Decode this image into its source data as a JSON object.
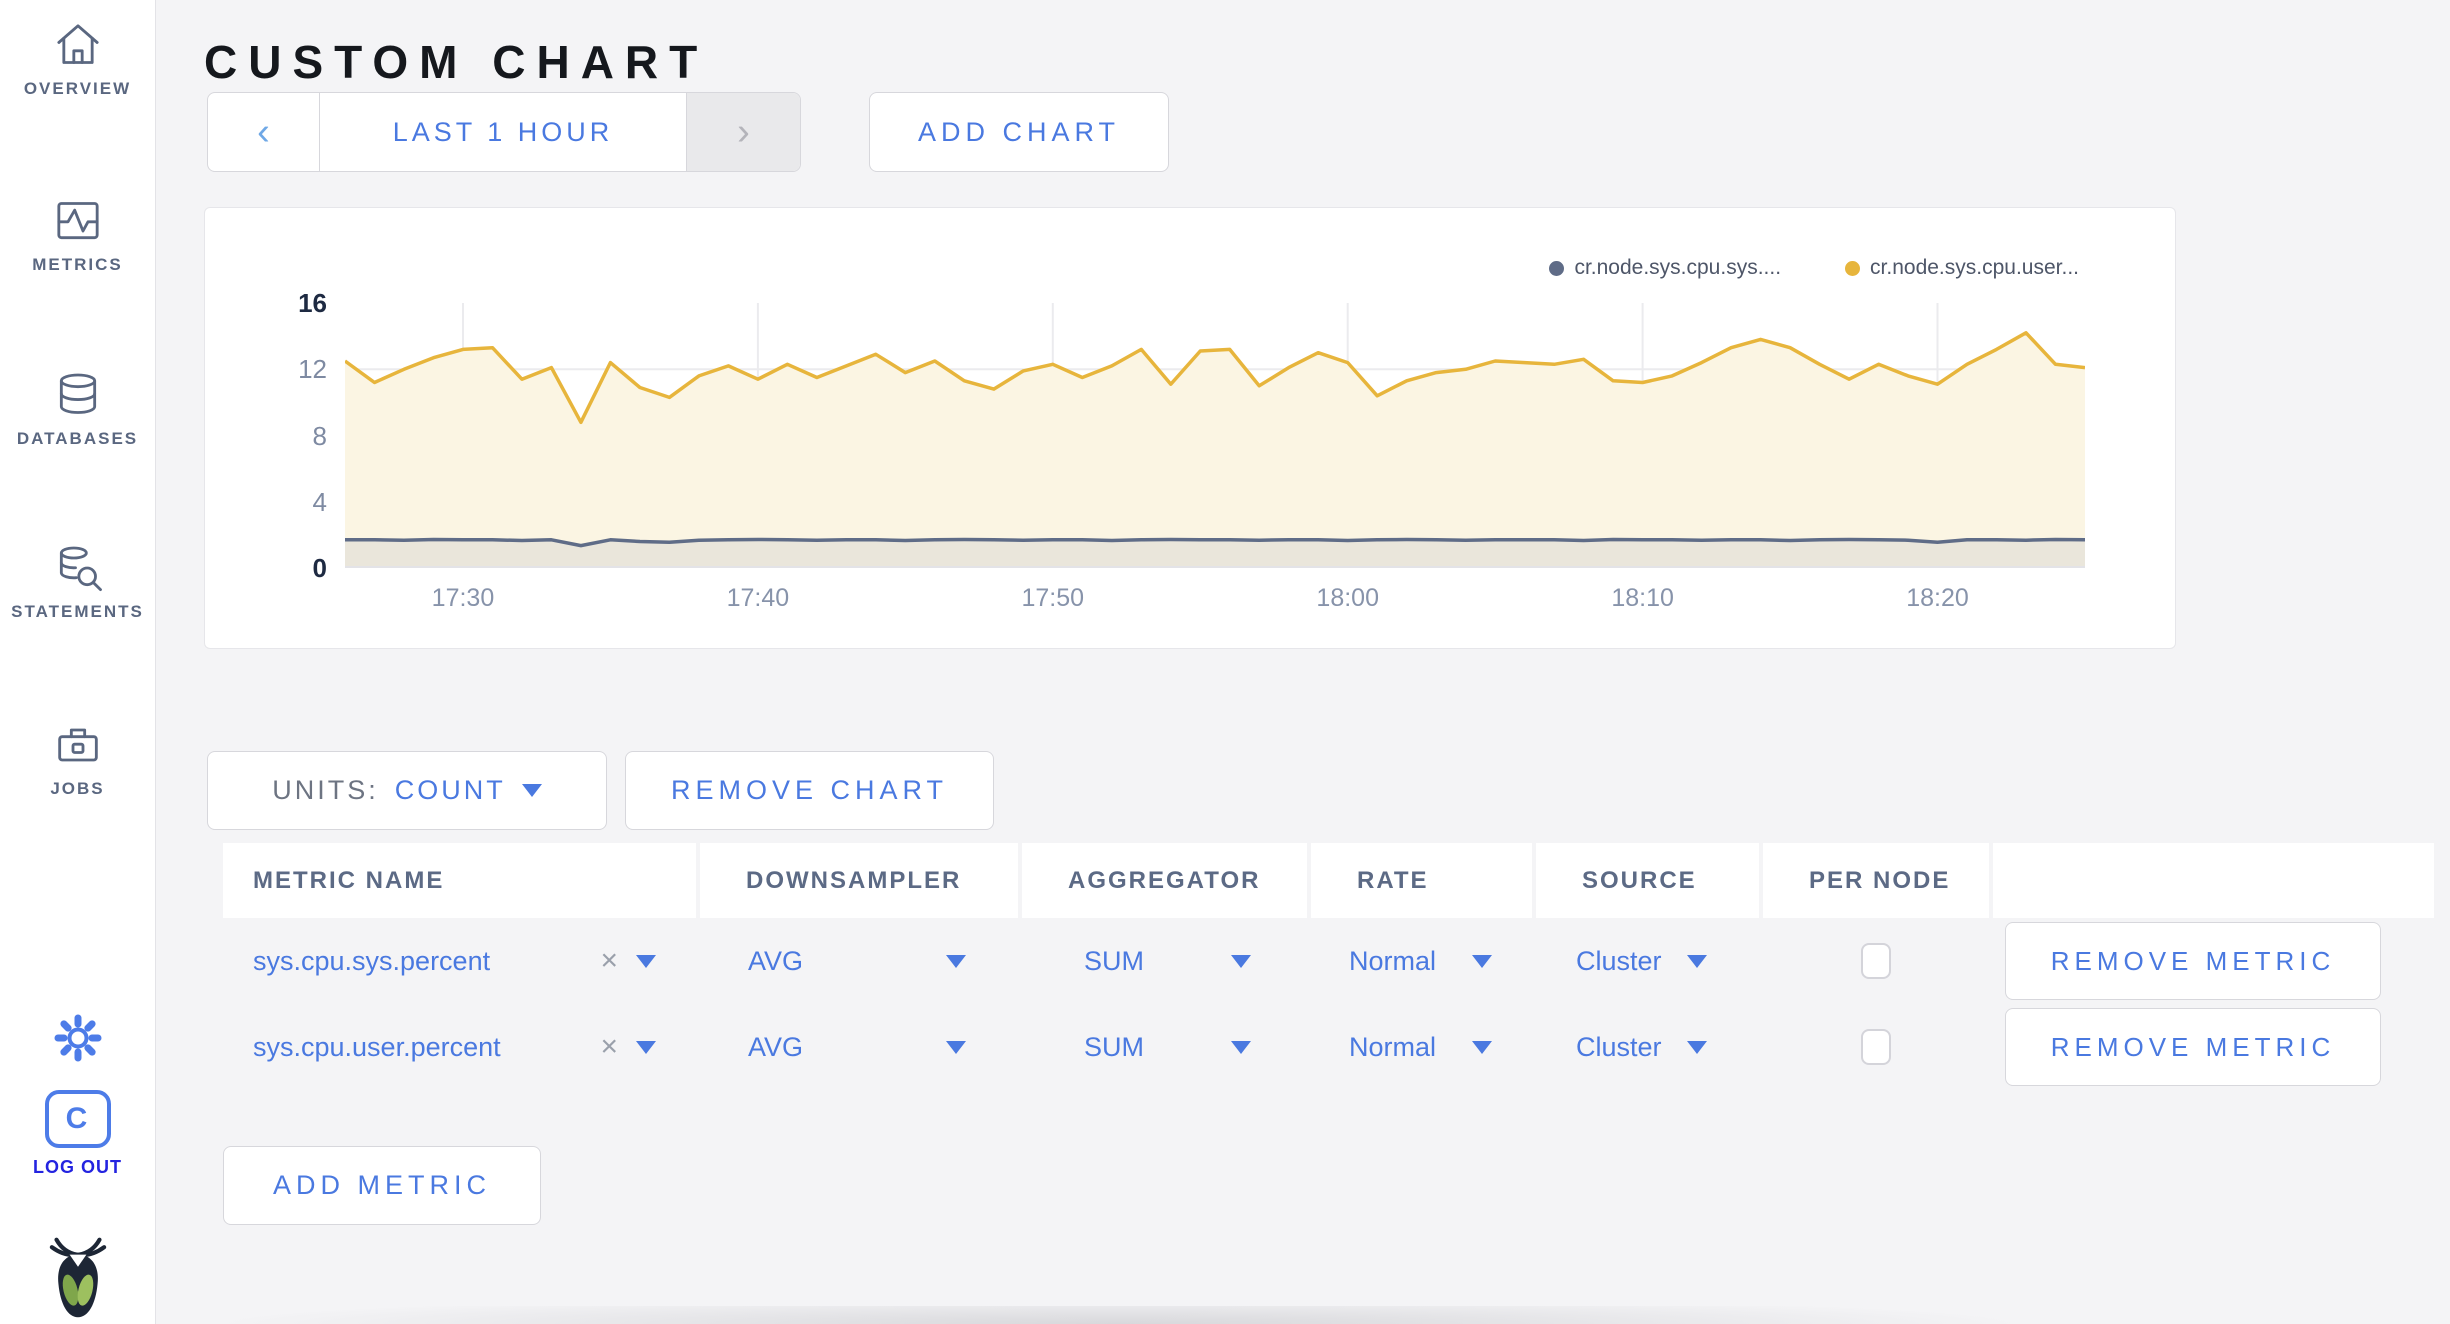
{
  "sidebar": {
    "items": [
      {
        "label": "OVERVIEW",
        "icon": "home-icon"
      },
      {
        "label": "METRICS",
        "icon": "metrics-icon"
      },
      {
        "label": "DATABASES",
        "icon": "database-icon"
      },
      {
        "label": "STATEMENTS",
        "icon": "statements-icon"
      },
      {
        "label": "JOBS",
        "icon": "jobs-icon"
      }
    ],
    "logout": {
      "logo_letter": "C",
      "label": "LOG OUT"
    }
  },
  "header": {
    "title": "CUSTOM CHART",
    "time_selector": {
      "prev": "‹",
      "label": "LAST 1 HOUR",
      "next": "›"
    },
    "add_chart_label": "ADD CHART"
  },
  "chart_card": {
    "legend": [
      {
        "label": "cr.node.sys.cpu.sys....",
        "color": "#5f6c87"
      },
      {
        "label": "cr.node.sys.cpu.user...",
        "color": "#e7b53c"
      }
    ]
  },
  "chart_data": {
    "type": "line",
    "title": "",
    "x_start": "17:26",
    "x_end": "18:25",
    "point_interval_minutes": 1,
    "x_ticks": [
      {
        "label": "17:30",
        "idx": 4
      },
      {
        "label": "17:40",
        "idx": 14
      },
      {
        "label": "17:50",
        "idx": 24
      },
      {
        "label": "18:00",
        "idx": 34
      },
      {
        "label": "18:10",
        "idx": 44
      },
      {
        "label": "18:20",
        "idx": 54
      }
    ],
    "ylim": [
      0,
      16
    ],
    "y_ticks": [
      {
        "value": 16,
        "strong": true
      },
      {
        "value": 12,
        "strong": false
      },
      {
        "value": 8,
        "strong": false
      },
      {
        "value": 4,
        "strong": false
      },
      {
        "value": 0,
        "strong": true
      }
    ],
    "y_gridlines": [
      4,
      8,
      12
    ],
    "grid": true,
    "legend_position": "top-right",
    "series": [
      {
        "name": "cr.node.sys.cpu.sys....",
        "color": "#5f6c87",
        "fill": "#eae6db",
        "values": [
          1.7,
          1.7,
          1.68,
          1.72,
          1.7,
          1.7,
          1.66,
          1.7,
          1.35,
          1.7,
          1.6,
          1.56,
          1.68,
          1.7,
          1.72,
          1.7,
          1.68,
          1.7,
          1.7,
          1.66,
          1.7,
          1.72,
          1.7,
          1.68,
          1.7,
          1.7,
          1.66,
          1.7,
          1.72,
          1.7,
          1.7,
          1.68,
          1.7,
          1.7,
          1.66,
          1.7,
          1.72,
          1.7,
          1.68,
          1.7,
          1.7,
          1.7,
          1.66,
          1.72,
          1.7,
          1.7,
          1.68,
          1.7,
          1.7,
          1.66,
          1.7,
          1.72,
          1.7,
          1.68,
          1.56,
          1.7,
          1.7,
          1.68,
          1.72,
          1.7
        ]
      },
      {
        "name": "cr.node.sys.cpu.user...",
        "color": "#e7b53c",
        "fill": "#fbf5e3",
        "values": [
          12.5,
          11.2,
          12.0,
          12.7,
          13.2,
          13.3,
          11.4,
          12.1,
          8.8,
          12.4,
          10.9,
          10.3,
          11.6,
          12.2,
          11.4,
          12.3,
          11.5,
          12.2,
          12.9,
          11.8,
          12.5,
          11.3,
          10.8,
          11.9,
          12.3,
          11.5,
          12.2,
          13.2,
          11.1,
          13.1,
          13.2,
          11.0,
          12.1,
          13.0,
          12.4,
          10.4,
          11.3,
          11.8,
          12.0,
          12.5,
          12.4,
          12.3,
          12.6,
          11.3,
          11.2,
          11.6,
          12.4,
          13.3,
          13.8,
          13.3,
          12.3,
          11.4,
          12.3,
          11.6,
          11.1,
          12.3,
          13.2,
          14.2,
          12.3,
          12.1
        ]
      }
    ]
  },
  "controls": {
    "units_label": "UNITS:",
    "units_value": "COUNT",
    "remove_chart_label": "REMOVE CHART",
    "add_metric_label": "ADD METRIC"
  },
  "table": {
    "headers": [
      "METRIC NAME",
      "DOWNSAMPLER",
      "AGGREGATOR",
      "RATE",
      "SOURCE",
      "PER NODE",
      ""
    ],
    "rows": [
      {
        "metric_name": "sys.cpu.sys.percent",
        "clear_glyph": "×",
        "downsampler": "AVG",
        "aggregator": "SUM",
        "rate": "Normal",
        "source": "Cluster",
        "per_node_checked": false,
        "action_label": "REMOVE METRIC"
      },
      {
        "metric_name": "sys.cpu.user.percent",
        "clear_glyph": "×",
        "downsampler": "AVG",
        "aggregator": "SUM",
        "rate": "Normal",
        "source": "Cluster",
        "per_node_checked": false,
        "action_label": "REMOVE METRIC"
      }
    ]
  },
  "colors": {
    "accent_blue": "#4a79e0",
    "page_bg": "#f4f4f6",
    "sidebar_icon": "#5a6780",
    "series_yellow": "#e7b53c",
    "series_slate": "#5f6c87",
    "logout_blue": "#2424e0",
    "leaf_green": "#7fa64b"
  }
}
